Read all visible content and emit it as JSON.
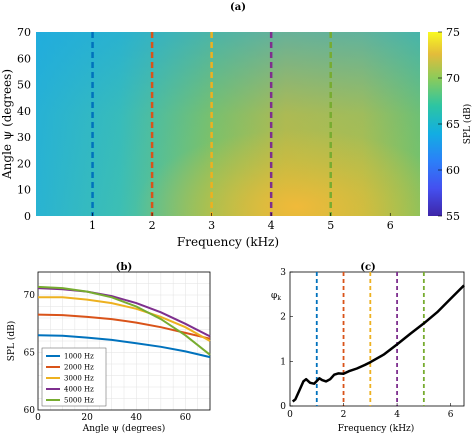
{
  "chart_data": [
    {
      "panel": "(a)",
      "type": "heatmap",
      "title": "(a)",
      "xlabel": "Frequency (kHz)",
      "ylabel": "Angle ψ (degrees)",
      "xlim": [
        0.05,
        6.5
      ],
      "ylim": [
        0,
        70
      ],
      "xticks": [
        1,
        2,
        3,
        4,
        5,
        6
      ],
      "yticks": [
        0,
        10,
        20,
        30,
        40,
        50,
        60,
        70
      ],
      "colorbar": {
        "label": "SPL (dB)",
        "range": [
          55,
          75
        ],
        "ticks": [
          55,
          60,
          65,
          70,
          75
        ]
      },
      "vlines": [
        {
          "x": 1,
          "color": "#0072BD"
        },
        {
          "x": 2,
          "color": "#D95319"
        },
        {
          "x": 3,
          "color": "#EDB120"
        },
        {
          "x": 4,
          "color": "#7E2F8E"
        },
        {
          "x": 5,
          "color": "#77AC30"
        }
      ]
    },
    {
      "panel": "(b)",
      "type": "line",
      "title": "(b)",
      "xlabel": "Angle ψ (degrees)",
      "ylabel": "SPL (dB)",
      "xlim": [
        0,
        70
      ],
      "ylim": [
        60,
        72
      ],
      "xticks": [
        0,
        20,
        40,
        60
      ],
      "yticks": [
        60,
        65,
        70
      ],
      "x": [
        0,
        10,
        20,
        30,
        40,
        50,
        60,
        70
      ],
      "legend": "lower-left",
      "series": [
        {
          "name": "1000 Hz",
          "color": "#0072BD",
          "values": [
            66.5,
            66.45,
            66.3,
            66.1,
            65.8,
            65.5,
            65.1,
            64.6
          ]
        },
        {
          "name": "2000 Hz",
          "color": "#D95319",
          "values": [
            68.3,
            68.25,
            68.1,
            67.9,
            67.6,
            67.2,
            66.7,
            66.2
          ]
        },
        {
          "name": "3000 Hz",
          "color": "#EDB120",
          "values": [
            69.8,
            69.8,
            69.6,
            69.3,
            68.8,
            68.1,
            67.2,
            66.0
          ]
        },
        {
          "name": "4000 Hz",
          "color": "#7E2F8E",
          "values": [
            70.6,
            70.5,
            70.3,
            69.9,
            69.3,
            68.5,
            67.5,
            66.4
          ]
        },
        {
          "name": "5000 Hz",
          "color": "#77AC30",
          "values": [
            70.7,
            70.6,
            70.3,
            69.8,
            69.0,
            67.9,
            66.5,
            64.8
          ]
        }
      ]
    },
    {
      "panel": "(c)",
      "type": "line",
      "title": "(c)",
      "xlabel": "Frequency (kHz)",
      "ylabel": "φ_k",
      "xlim": [
        0,
        6.5
      ],
      "ylim": [
        0,
        3
      ],
      "xticks": [
        0,
        2,
        4,
        6
      ],
      "yticks": [
        0,
        1,
        2,
        3
      ],
      "x": [
        0.1,
        0.2,
        0.35,
        0.5,
        0.6,
        0.75,
        0.9,
        1.0,
        1.1,
        1.2,
        1.35,
        1.5,
        1.65,
        1.8,
        2.0,
        2.2,
        2.5,
        2.8,
        3.0,
        3.5,
        4.0,
        4.5,
        5.0,
        5.5,
        6.0,
        6.5
      ],
      "series": [
        {
          "name": "",
          "color": "#000000",
          "values": [
            0.1,
            0.15,
            0.35,
            0.55,
            0.6,
            0.52,
            0.5,
            0.56,
            0.62,
            0.58,
            0.55,
            0.6,
            0.7,
            0.73,
            0.72,
            0.78,
            0.84,
            0.92,
            0.98,
            1.15,
            1.38,
            1.62,
            1.85,
            2.1,
            2.4,
            2.7
          ]
        }
      ],
      "vlines": [
        {
          "x": 1,
          "color": "#0072BD"
        },
        {
          "x": 2,
          "color": "#D95319"
        },
        {
          "x": 3,
          "color": "#EDB120"
        },
        {
          "x": 4,
          "color": "#7E2F8E"
        },
        {
          "x": 5,
          "color": "#77AC30"
        }
      ]
    }
  ]
}
